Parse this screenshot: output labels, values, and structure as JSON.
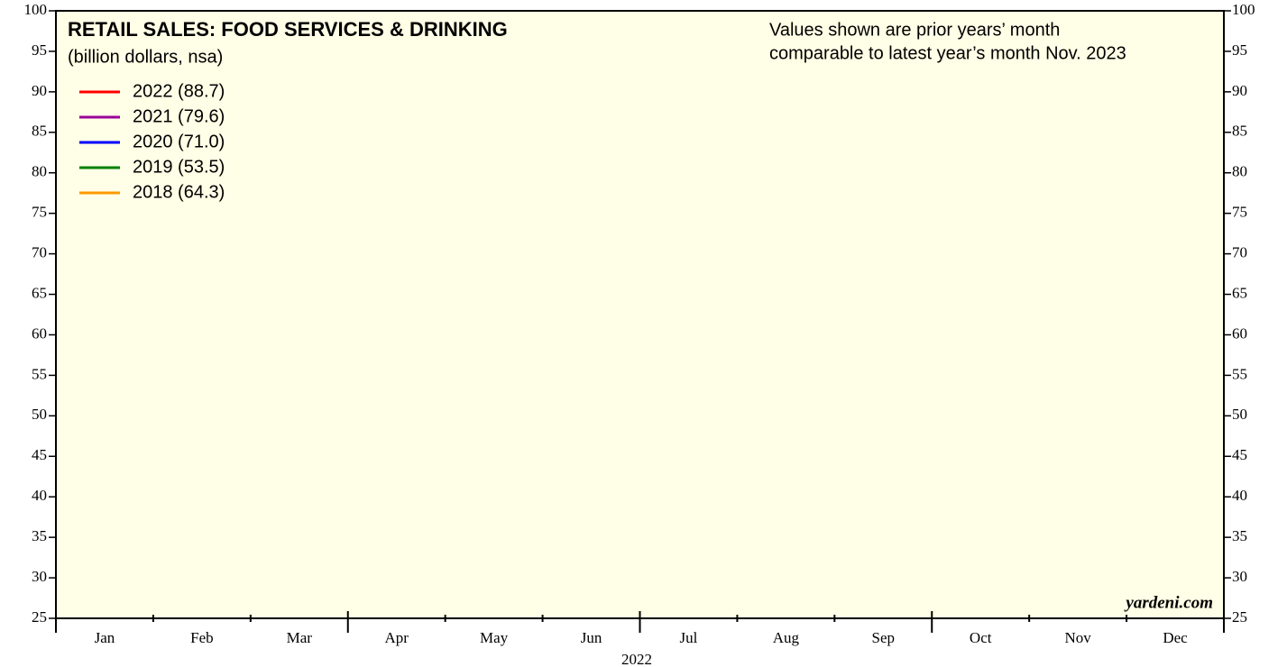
{
  "chart_data": {
    "type": "line",
    "title": "RETAIL SALES: FOOD SERVICES & DRINKING",
    "subtitle": "(billion dollars, nsa)",
    "annotation_lines": [
      "Values shown are prior years’ month",
      "comparable to latest year’s month Nov. 2023"
    ],
    "source": "yardeni.com",
    "x_label": "2022",
    "categories": [
      "Jan",
      "Feb",
      "Mar",
      "Apr",
      "May",
      "Jun",
      "Jul",
      "Aug",
      "Sep",
      "Oct",
      "Nov",
      "Dec"
    ],
    "series": [
      {
        "name": "2022 (88.7)",
        "color": "#ff0000"
      },
      {
        "name": "2021 (79.6)",
        "color": "#990099"
      },
      {
        "name": "2020 (71.0)",
        "color": "#0000ff"
      },
      {
        "name": "2019 (53.5)",
        "color": "#008000"
      },
      {
        "name": "2018 (64.3)",
        "color": "#ff9900"
      }
    ],
    "ylim": [
      25,
      100
    ],
    "yticks": [
      25,
      30,
      35,
      40,
      45,
      50,
      55,
      60,
      65,
      70,
      75,
      80,
      85,
      90,
      95,
      100
    ],
    "legend": "upper left"
  }
}
